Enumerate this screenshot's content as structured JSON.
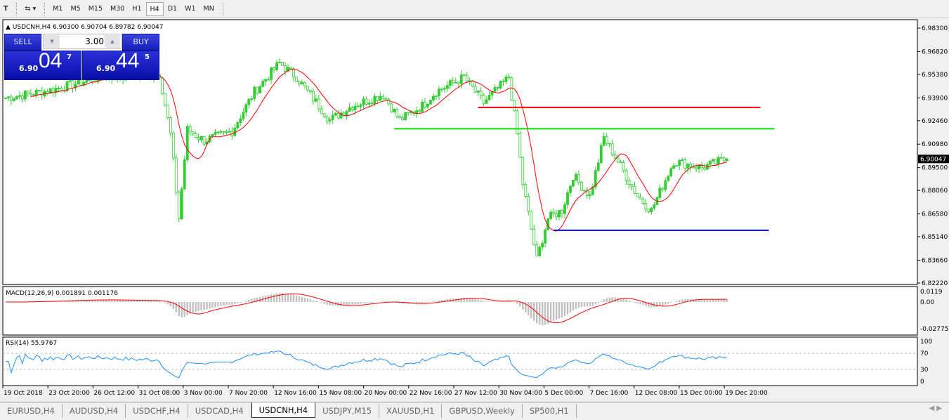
{
  "toolbar": {
    "timeframes": [
      "M1",
      "M5",
      "M15",
      "M30",
      "H1",
      "H4",
      "D1",
      "W1",
      "MN"
    ],
    "active": "H4"
  },
  "chart_header": "USDCNH,H4  6.90300 6.90704 6.89782 6.90047",
  "trade_panel": {
    "sell_label": "SELL",
    "buy_label": "BUY",
    "lot": "3.00",
    "sell_prefix": "6.90",
    "sell_big": "04",
    "sell_sup": "7",
    "buy_prefix": "6.90",
    "buy_big": "44",
    "buy_sup": "5"
  },
  "colors": {
    "bull": "#32cd32",
    "ma": "#ff0000",
    "macd_hist": "#c0c0c0",
    "rsi": "#1e90ff",
    "resistance": "#ff0000",
    "support_mid": "#00dd00",
    "support": "#0000ff"
  },
  "chart_data": {
    "type": "candlestick",
    "symbol": "USDCNH",
    "timeframe": "H4",
    "price_ticks": [
      "6.98300",
      "6.96820",
      "6.95380",
      "6.93900",
      "6.92460",
      "6.90980",
      "6.89500",
      "6.88060",
      "6.86580",
      "6.85140",
      "6.83660",
      "6.82220"
    ],
    "ylim": [
      6.8222,
      6.983
    ],
    "last_price": "6.90047",
    "time_labels": [
      "19 Oct 2018",
      "23 Oct 20:00",
      "26 Oct 12:00",
      "31 Oct 08:00",
      "3 Nov 00:00",
      "7 Nov 20:00",
      "12 Nov 16:00",
      "15 Nov 08:00",
      "20 Nov 00:00",
      "22 Nov 16:00",
      "27 Nov 12:00",
      "30 Nov 04:00",
      "5 Dec 00:00",
      "7 Dec 16:00",
      "12 Dec 08:00",
      "15 Dec 00:00",
      "19 Dec 20:00"
    ],
    "close_path": [
      [
        0,
        6.939
      ],
      [
        14,
        6.943
      ],
      [
        34,
        6.952
      ],
      [
        55,
        6.954
      ],
      [
        59,
        6.916
      ],
      [
        62,
        6.863
      ],
      [
        65,
        6.919
      ],
      [
        71,
        6.912
      ],
      [
        81,
        6.918
      ],
      [
        89,
        6.943
      ],
      [
        98,
        6.961
      ],
      [
        104,
        6.952
      ],
      [
        116,
        6.925
      ],
      [
        124,
        6.934
      ],
      [
        135,
        6.941
      ],
      [
        141,
        6.925
      ],
      [
        149,
        6.934
      ],
      [
        154,
        6.943
      ],
      [
        164,
        6.952
      ],
      [
        171,
        6.936
      ],
      [
        180,
        6.952
      ],
      [
        183,
        6.916
      ],
      [
        185,
        6.885
      ],
      [
        190,
        6.837
      ],
      [
        194,
        6.863
      ],
      [
        199,
        6.868
      ],
      [
        203,
        6.89
      ],
      [
        209,
        6.877
      ],
      [
        214,
        6.914
      ],
      [
        219,
        6.899
      ],
      [
        226,
        6.877
      ],
      [
        231,
        6.868
      ],
      [
        239,
        6.899
      ],
      [
        249,
        6.895
      ],
      [
        258,
        6.9005
      ]
    ],
    "moving_average_period": 10,
    "hlines": [
      {
        "price": 6.933,
        "from_bar": 169,
        "to_bar": 270
      },
      {
        "price": 6.9195,
        "from_bar": 139,
        "to_bar": 275
      },
      {
        "price": 6.8555,
        "from_bar": 196,
        "to_bar": 273
      }
    ],
    "macd": {
      "label": "MACD(12,26,9) 0.001891 0.001176",
      "ticks": [
        "0.0119",
        "0.00",
        "-0.027754"
      ],
      "ylim": [
        -0.027754,
        0.0119
      ]
    },
    "rsi": {
      "label": "RSI(14) 55.9767",
      "ticks": [
        "100",
        "70",
        "30",
        "0"
      ],
      "levels": [
        70,
        30
      ]
    }
  },
  "tabs": [
    "EURUSD,H4",
    "AUDUSD,H4",
    "USDCHF,H4",
    "USDCAD,H4",
    "USDCNH,H4",
    "USDJPY,M15",
    "XAUUSD,H1",
    "GBPUSD,Weekly",
    "SP500,H1"
  ],
  "active_tab": "USDCNH,H4"
}
